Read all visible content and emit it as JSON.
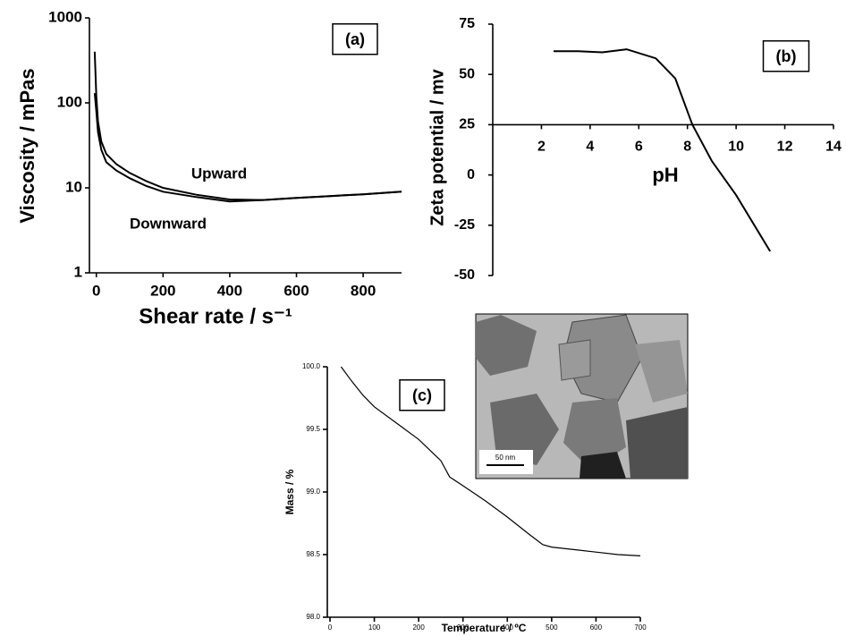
{
  "chart_data": [
    {
      "type": "line",
      "title": "(a)",
      "yscale": "log",
      "x": [
        -5,
        0,
        5,
        15,
        30,
        60,
        100,
        150,
        200,
        300,
        400,
        500,
        600,
        700,
        800,
        915
      ],
      "series": [
        {
          "name": "Upward",
          "color": "#000000",
          "values": [
            400,
            120,
            60,
            35,
            25,
            19,
            15,
            12,
            10,
            8.3,
            7.3,
            7.2,
            7.6,
            8.0,
            8.4,
            9
          ]
        },
        {
          "name": "Downward",
          "color": "#000000",
          "values": [
            130,
            80,
            45,
            28,
            20,
            16,
            13,
            10.5,
            9,
            7.8,
            6.9,
            7.2,
            7.6,
            8.0,
            8.4,
            9
          ]
        }
      ],
      "xlabel": "Shear rate / s⁻¹",
      "ylabel": "Viscosity / mPas",
      "xlim": [
        -10,
        915
      ],
      "ylim": [
        1,
        1000
      ],
      "xticks": [
        0,
        200,
        400,
        600,
        800
      ],
      "yticks": [
        1,
        10,
        100,
        1000
      ]
    },
    {
      "type": "line",
      "title": "(b)",
      "x": [
        2.5,
        3.5,
        4.5,
        5.5,
        6.7,
        7.5,
        8.2,
        9,
        10,
        11.4
      ],
      "values": [
        61.5,
        61.5,
        61,
        62.5,
        58,
        48,
        25,
        7,
        -10,
        -38
      ],
      "color": "#000000",
      "xlabel": "pH",
      "ylabel": "Zeta potential / mv",
      "xlim": [
        0,
        14
      ],
      "ylim": [
        -50,
        75
      ],
      "x_axis_crosses": 25,
      "xticks": [
        2,
        4,
        6,
        8,
        10,
        12,
        14
      ],
      "yticks": [
        -50,
        -25,
        0,
        25,
        50,
        75
      ]
    },
    {
      "type": "line",
      "title": "(c)",
      "x": [
        25,
        50,
        75,
        100,
        150,
        200,
        250,
        270,
        300,
        350,
        400,
        450,
        480,
        500,
        550,
        600,
        650,
        700
      ],
      "values": [
        100,
        99.88,
        99.77,
        99.68,
        99.55,
        99.42,
        99.25,
        99.12,
        99.05,
        98.93,
        98.8,
        98.66,
        98.58,
        98.56,
        98.54,
        98.52,
        98.5,
        98.49
      ],
      "color": "#000000",
      "xlabel": "Temperature / ºC",
      "ylabel": "Mass / %",
      "xlim": [
        0,
        700
      ],
      "ylim": [
        98,
        100
      ],
      "xticks": [
        0,
        100,
        200,
        300,
        400,
        500,
        600,
        700
      ],
      "yticks": [
        {
          "value": 98,
          "label": "98.0"
        },
        {
          "value": 98.5,
          "label": "98.5"
        },
        {
          "value": 99,
          "label": "99.0"
        },
        {
          "value": 99.5,
          "label": "99.5"
        },
        {
          "value": 100,
          "label": "100.0"
        }
      ],
      "scale_bar_label": "50 nm"
    }
  ]
}
